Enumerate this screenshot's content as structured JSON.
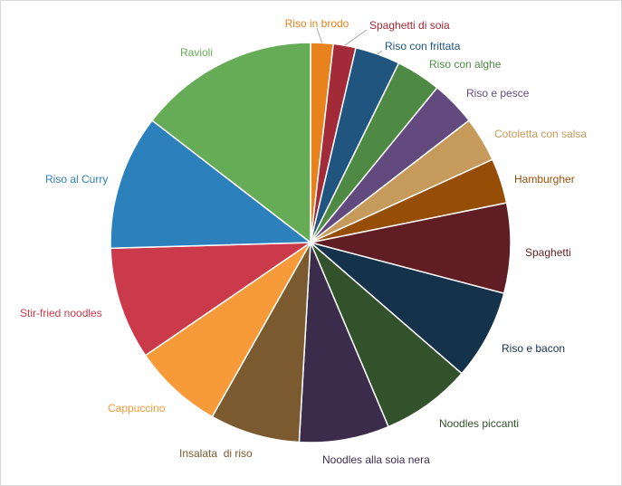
{
  "chart_data": {
    "type": "pie",
    "title": "",
    "start_angle_deg": 0,
    "direction": "clockwise",
    "slices": [
      {
        "label": "Riso in brodo",
        "value": 2,
        "color": "#E8821C",
        "label_color": "#E8821C"
      },
      {
        "label": "Spaghetti di soia",
        "value": 2,
        "color": "#A32A38",
        "label_color": "#A32A38"
      },
      {
        "label": "Riso con frittata",
        "value": 4,
        "color": "#1F557E",
        "label_color": "#1F557E"
      },
      {
        "label": "Riso con alghe",
        "value": 4,
        "color": "#4E8A44",
        "label_color": "#4E8A44"
      },
      {
        "label": "Riso e pesce",
        "value": 4,
        "color": "#624A7E",
        "label_color": "#624A7E"
      },
      {
        "label": "Cotoletta con salsa",
        "value": 4,
        "color": "#C59A5B",
        "label_color": "#C59A5B"
      },
      {
        "label": "Hamburgher",
        "value": 4,
        "color": "#964E06",
        "label_color": "#964E06"
      },
      {
        "label": "Spaghetti",
        "value": 8,
        "color": "#611D24",
        "label_color": "#611D24"
      },
      {
        "label": "Riso e bacon",
        "value": 8,
        "color": "#15324B",
        "label_color": "#15324B"
      },
      {
        "label": "Noodles piccanti",
        "value": 8,
        "color": "#32522C",
        "label_color": "#32522C"
      },
      {
        "label": "Noodles alla soia nera",
        "value": 8,
        "color": "#3B2C4B",
        "label_color": "#3B2C4B"
      },
      {
        "label": "Insalata  di riso",
        "value": 8,
        "color": "#7A5A2E",
        "label_color": "#7A5A2E"
      },
      {
        "label": "Cappuccino",
        "value": 8,
        "color": "#F79A3A",
        "label_color": "#F79A3A"
      },
      {
        "label": "Stir-fried noodles",
        "value": 10,
        "color": "#CB3A4A",
        "label_color": "#CB3A4A"
      },
      {
        "label": "Riso al Curry",
        "value": 12,
        "color": "#2C81BD",
        "label_color": "#2C81BD"
      },
      {
        "label": "Ravioli",
        "value": 16,
        "color": "#66AC57",
        "label_color": "#66AC57"
      }
    ]
  }
}
